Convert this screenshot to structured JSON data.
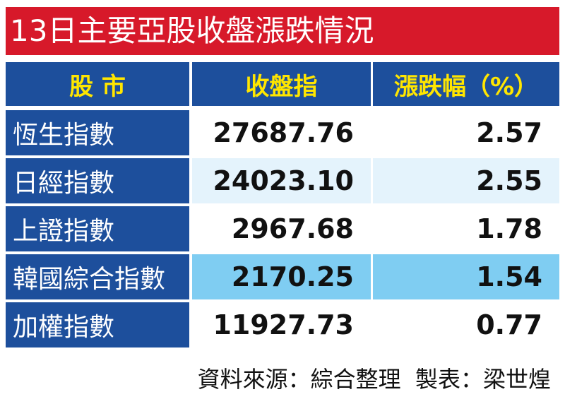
{
  "header": {
    "title": "13日主要亞股收盤漲跌情況"
  },
  "table": {
    "columns": [
      "股 市",
      "收盤指",
      "漲跌幅（%）"
    ],
    "rows": [
      [
        "恆生指數",
        "27687.76",
        "2.57"
      ],
      [
        "日經指數",
        "24023.10",
        "2.55"
      ],
      [
        "上證指數",
        "2967.68",
        "1.78"
      ],
      [
        "韓國綜合指數",
        "2170.25",
        "1.54"
      ],
      [
        "加權指數",
        "11927.73",
        "0.77"
      ]
    ]
  },
  "footer": {
    "source": "資料來源：綜合整理  製表：梁世煌"
  }
}
